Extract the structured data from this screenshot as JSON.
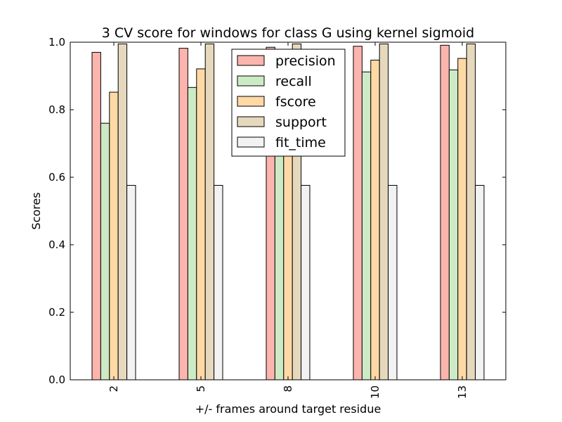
{
  "chart_data": {
    "type": "bar",
    "title": "3 CV score for windows for class G using kernel sigmoid",
    "xlabel": "+/- frames around target residue",
    "ylabel": "Scores",
    "categories": [
      "2",
      "5",
      "8",
      "10",
      "13"
    ],
    "ylim": [
      0,
      1.0
    ],
    "yticks": [
      "0.0",
      "0.2",
      "0.4",
      "0.6",
      "0.8",
      "1.0"
    ],
    "grid": false,
    "legend_position": "top-center",
    "series": [
      {
        "name": "precision",
        "color": "#fbb4ae",
        "values": [
          0.97,
          0.982,
          0.985,
          0.988,
          0.991
        ]
      },
      {
        "name": "recall",
        "color": "#ccebc5",
        "values": [
          0.76,
          0.866,
          0.88,
          0.912,
          0.918
        ]
      },
      {
        "name": "fscore",
        "color": "#fed9a6",
        "values": [
          0.852,
          0.921,
          0.93,
          0.947,
          0.952
        ]
      },
      {
        "name": "support",
        "color": "#e5d8bd",
        "values": [
          0.995,
          0.995,
          0.995,
          0.995,
          0.995
        ]
      },
      {
        "name": "fit_time",
        "color": "#f2f2f2",
        "values": [
          0.576,
          0.576,
          0.576,
          0.576,
          0.576
        ]
      }
    ]
  }
}
